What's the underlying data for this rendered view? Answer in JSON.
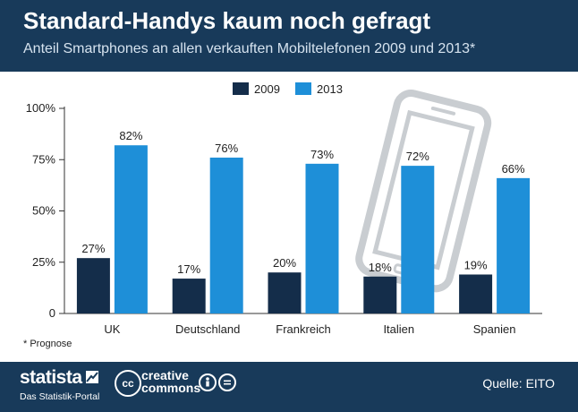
{
  "header": {
    "title": "Standard-Handys kaum noch gefragt",
    "subtitle": "Anteil Smartphones an allen verkauften Mobiltelefonen 2009 und 2013*"
  },
  "footnote": "* Prognose",
  "footer": {
    "brand": "statista",
    "brand_tagline": "Das Statistik-Portal",
    "cc_logo": "cc",
    "cc_line1": "creative",
    "cc_line2": "commons",
    "by_icon": "by-person-icon",
    "nd_icon": "no-derivatives-icon",
    "source": "Quelle: EITO"
  },
  "colors": {
    "header_bg": "#183a5a",
    "series_2009": "#142d4a",
    "series_2013": "#1e8fd8",
    "phone_illustration": "#c9cdd1"
  },
  "chart_data": {
    "type": "bar",
    "categories": [
      "UK",
      "Deutschland",
      "Frankreich",
      "Italien",
      "Spanien"
    ],
    "series": [
      {
        "name": "2009",
        "values": [
          27,
          17,
          20,
          18,
          19
        ],
        "labels": [
          "27%",
          "17%",
          "20%",
          "18%",
          "19%"
        ]
      },
      {
        "name": "2013",
        "values": [
          82,
          76,
          73,
          72,
          66
        ],
        "labels": [
          "82%",
          "76%",
          "73%",
          "72%",
          "66%"
        ]
      }
    ],
    "yticks": [
      0,
      25,
      50,
      75,
      100
    ],
    "ytick_labels": [
      "0",
      "25%",
      "50%",
      "75%",
      "100%"
    ],
    "ylim": [
      0,
      100
    ],
    "legend_position": "top-center",
    "grid": false,
    "decoration": "smartphone-outline-illustration"
  }
}
